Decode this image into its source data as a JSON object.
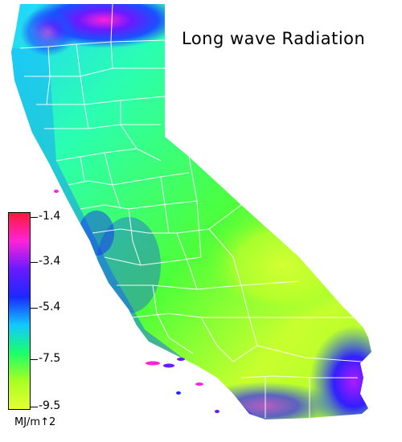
{
  "map": {
    "title": "Long wave Radiation",
    "legend": {
      "units": "MJ/m↑2",
      "ticks": [
        "-1.4",
        "-3.4",
        "-5.4",
        "-7.5",
        "-9.5"
      ],
      "colors": [
        "#ff1a3a",
        "#ff22d8",
        "#6a1aff",
        "#1a28ff",
        "#11c8ff",
        "#1aff6a",
        "#a8ff22",
        "#e6ff33"
      ]
    }
  }
}
